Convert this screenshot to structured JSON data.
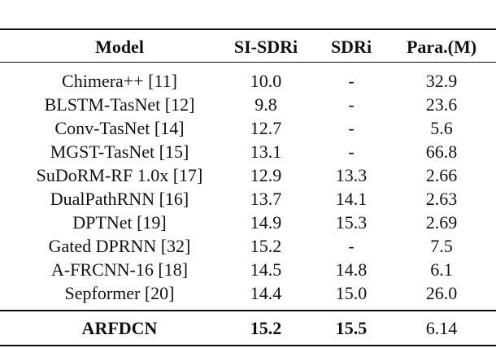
{
  "table": {
    "header": [
      "Model",
      "SI-SDRi",
      "SDRi",
      "Para.(M)"
    ],
    "rows": [
      [
        "Chimera++ [11]",
        "10.0",
        "-",
        "32.9"
      ],
      [
        "BLSTM-TasNet [12]",
        "9.8",
        "-",
        "23.6"
      ],
      [
        "Conv-TasNet [14]",
        "12.7",
        "-",
        "5.6"
      ],
      [
        "MGST-TasNet [15]",
        "13.1",
        "-",
        "66.8"
      ],
      [
        "SuDoRM-RF 1.0x [17]",
        "12.9",
        "13.3",
        "2.66"
      ],
      [
        "DualPathRNN [16]",
        "13.7",
        "14.1",
        "2.63"
      ],
      [
        "DPTNet [19]",
        "14.9",
        "15.3",
        "2.69"
      ],
      [
        "Gated DPRNN [32]",
        "15.2",
        "-",
        "7.5"
      ],
      [
        "A-FRCNN-16 [18]",
        "14.5",
        "14.8",
        "6.1"
      ],
      [
        "Sepformer [20]",
        "14.4",
        "15.0",
        "26.0"
      ]
    ],
    "final_row": [
      "ARFDCN",
      "15.2",
      "15.5",
      "6.14"
    ]
  }
}
